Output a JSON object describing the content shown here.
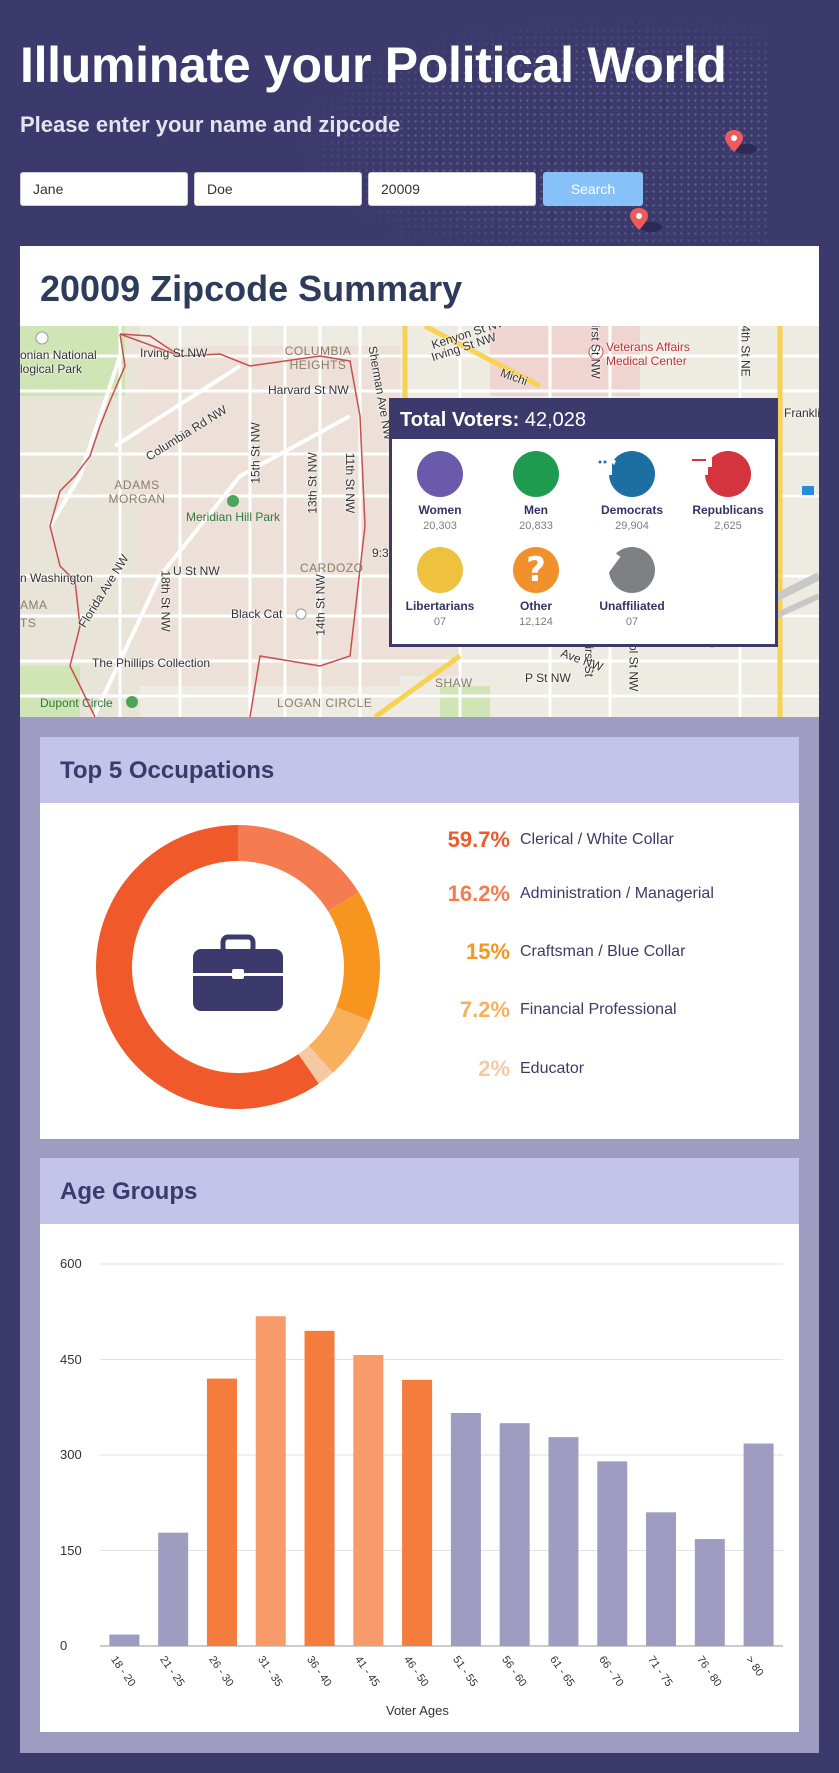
{
  "hero": {
    "title": "Illuminate your Political World",
    "subtitle": "Please enter your name and zipcode",
    "first_name": "Jane",
    "last_name": "Doe",
    "zipcode": "20009",
    "search_label": "Search"
  },
  "summary": {
    "title": "20009 Zipcode Summary",
    "map_labels": {
      "streets": [
        "Irving St NW",
        "Harvard St NW",
        "Columbia Rd NW",
        "15th St NW",
        "13th St NW",
        "11th St NW",
        "Sherman Ave NW",
        "U St NW",
        "18th St NW",
        "Florida Ave NW",
        "14th St NW",
        "Kenyon St NW",
        "Irving St NW",
        "First St NW",
        "4th St NE",
        "Michi",
        "ve NW",
        "P St NW",
        "First St",
        "apitol St NW",
        "Ave NW",
        "Franklin"
      ],
      "neighborhoods": [
        "COLUMBIA HEIGHTS",
        "ADAMS MORGAN",
        "CARDOZO",
        "SHAW",
        "LOGAN CIRCLE",
        "AMA",
        "TS"
      ],
      "places": [
        "onian National logical Park",
        "Meridian Hill Park",
        "Black Cat",
        "The Phillips Collection",
        "Dupont Circle",
        "Veterans Affairs Medical Center",
        "n Washington",
        "9:3"
      ]
    },
    "voters": {
      "label": "Total Voters:",
      "total": "42,028",
      "items": [
        {
          "label": "Women",
          "value": "20,303",
          "icon": "woman-icon",
          "color": "#6a5aab"
        },
        {
          "label": "Men",
          "value": "20,833",
          "icon": "man-icon",
          "color": "#1e9b4e"
        },
        {
          "label": "Democrats",
          "value": "29,904",
          "icon": "donkey-icon",
          "color": "#1d6ea3"
        },
        {
          "label": "Republicans",
          "value": "2,625",
          "icon": "elephant-icon",
          "color": "#d3343d"
        },
        {
          "label": "Libertarians",
          "value": "07",
          "icon": "liberty-icon",
          "color": "#eec13e"
        },
        {
          "label": "Other",
          "value": "12,124",
          "icon": "question-icon",
          "color": "#f0912d"
        },
        {
          "label": "Unaffiliated",
          "value": "07",
          "icon": "slash-icon",
          "color": "#7e8083"
        }
      ]
    }
  },
  "occupations": {
    "title": "Top 5 Occupations",
    "icon": "briefcase-icon",
    "items": [
      {
        "pct": "59.7%",
        "label": "Clerical / White Collar",
        "color": "#f05a2b"
      },
      {
        "pct": "16.2%",
        "label": "Administration / Managerial",
        "color": "#f47c50"
      },
      {
        "pct": "15%",
        "label": "Craftsman / Blue Collar",
        "color": "#f7951f"
      },
      {
        "pct": "7.2%",
        "label": "Financial Professional",
        "color": "#f9b05d"
      },
      {
        "pct": "2%",
        "label": "Educator",
        "color": "#f6c9a5"
      }
    ]
  },
  "ages": {
    "title": "Age Groups"
  },
  "chart_data": {
    "type": "bar",
    "title": "Age Groups",
    "xlabel": "Voter Ages",
    "ylabel": "",
    "ylim": [
      0,
      600
    ],
    "yticks": [
      "600",
      "450",
      "300",
      "150",
      "0"
    ],
    "categories": [
      "18 - 20",
      "21 - 25",
      "26 - 30",
      "31 - 35",
      "36 - 40",
      "41 - 45",
      "46 - 50",
      "51 - 55",
      "56 - 60",
      "61 - 65",
      "66 - 70",
      "71 - 75",
      "76 - 80",
      "> 80"
    ],
    "values": [
      18,
      178,
      420,
      518,
      495,
      457,
      418,
      366,
      350,
      328,
      290,
      210,
      168,
      318
    ],
    "colors": [
      "#9e9dc1",
      "#9e9dc1",
      "#f47c3c",
      "#f79b6a",
      "#f47c3c",
      "#f79b6a",
      "#f47c3c",
      "#9e9dc1",
      "#9e9dc1",
      "#9e9dc1",
      "#9e9dc1",
      "#9e9dc1",
      "#9e9dc1",
      "#9e9dc1"
    ],
    "grid": true,
    "legend": "none"
  }
}
